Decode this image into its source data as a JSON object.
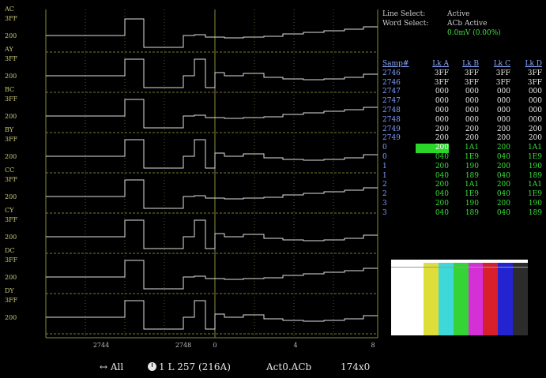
{
  "channels": [
    {
      "name": "AC",
      "hi": "3FF",
      "lo": "200"
    },
    {
      "name": "AY",
      "hi": "3FF",
      "lo": "200"
    },
    {
      "name": "BC",
      "hi": "3FF",
      "lo": "200"
    },
    {
      "name": "BY",
      "hi": "3FF",
      "lo": "200"
    },
    {
      "name": "CC",
      "hi": "3FF",
      "lo": "200"
    },
    {
      "name": "CY",
      "hi": "3FF",
      "lo": "200"
    },
    {
      "name": "DC",
      "hi": "3FF",
      "lo": "200"
    },
    {
      "name": "DY",
      "hi": "3FF",
      "lo": "200"
    }
  ],
  "x_axis": {
    "labels": [
      "2744",
      "2748",
      "0",
      "4",
      "8"
    ]
  },
  "info": {
    "line_select_label": "Line Select:",
    "line_select_value": "Active",
    "word_select_label": "Word Select:",
    "word_select_value": "ACb Active",
    "level_value": "0.0mV (0.00%)"
  },
  "table": {
    "headers": [
      "Samp#",
      "Lk A",
      "Lk B",
      "Lk C",
      "Lk D"
    ],
    "rows": [
      {
        "samp": "2746",
        "a": "3FF",
        "b": "3FF",
        "c": "3FF",
        "d": "3FF",
        "color": "white"
      },
      {
        "samp": "2746",
        "a": "3FF",
        "b": "3FF",
        "c": "3FF",
        "d": "3FF",
        "color": "white"
      },
      {
        "samp": "2747",
        "a": "000",
        "b": "000",
        "c": "000",
        "d": "000",
        "color": "white"
      },
      {
        "samp": "2747",
        "a": "000",
        "b": "000",
        "c": "000",
        "d": "000",
        "color": "white"
      },
      {
        "samp": "2748",
        "a": "000",
        "b": "000",
        "c": "000",
        "d": "000",
        "color": "white"
      },
      {
        "samp": "2748",
        "a": "000",
        "b": "000",
        "c": "000",
        "d": "000",
        "color": "white"
      },
      {
        "samp": "2749",
        "a": "200",
        "b": "200",
        "c": "200",
        "d": "200",
        "color": "white"
      },
      {
        "samp": "2749",
        "a": "200",
        "b": "200",
        "c": "200",
        "d": "200",
        "color": "white"
      },
      {
        "samp": "0",
        "a": "200",
        "b": "1A1",
        "c": "200",
        "d": "1A1",
        "color": "green",
        "selected": true
      },
      {
        "samp": "0",
        "a": "040",
        "b": "1E9",
        "c": "040",
        "d": "1E9",
        "color": "green"
      },
      {
        "samp": "1",
        "a": "200",
        "b": "190",
        "c": "200",
        "d": "190",
        "color": "green"
      },
      {
        "samp": "1",
        "a": "040",
        "b": "189",
        "c": "040",
        "d": "189",
        "color": "green"
      },
      {
        "samp": "2",
        "a": "200",
        "b": "1A1",
        "c": "200",
        "d": "1A1",
        "color": "green"
      },
      {
        "samp": "2",
        "a": "040",
        "b": "1E9",
        "c": "040",
        "d": "1E9",
        "color": "green"
      },
      {
        "samp": "3",
        "a": "200",
        "b": "190",
        "c": "200",
        "d": "190",
        "color": "green"
      },
      {
        "samp": "3",
        "a": "040",
        "b": "189",
        "c": "040",
        "d": "189",
        "color": "green"
      }
    ]
  },
  "color_bars": [
    "#ffffff",
    "#dede3a",
    "#3fd8d8",
    "#35d335",
    "#d52fd8",
    "#d8202c",
    "#2323d2",
    "#2c2c2c"
  ],
  "status": {
    "all_label": "↔ All",
    "line_label": "1 L 257 (216A)",
    "active_label": "Act0.ACb",
    "size_label": "174x0"
  }
}
